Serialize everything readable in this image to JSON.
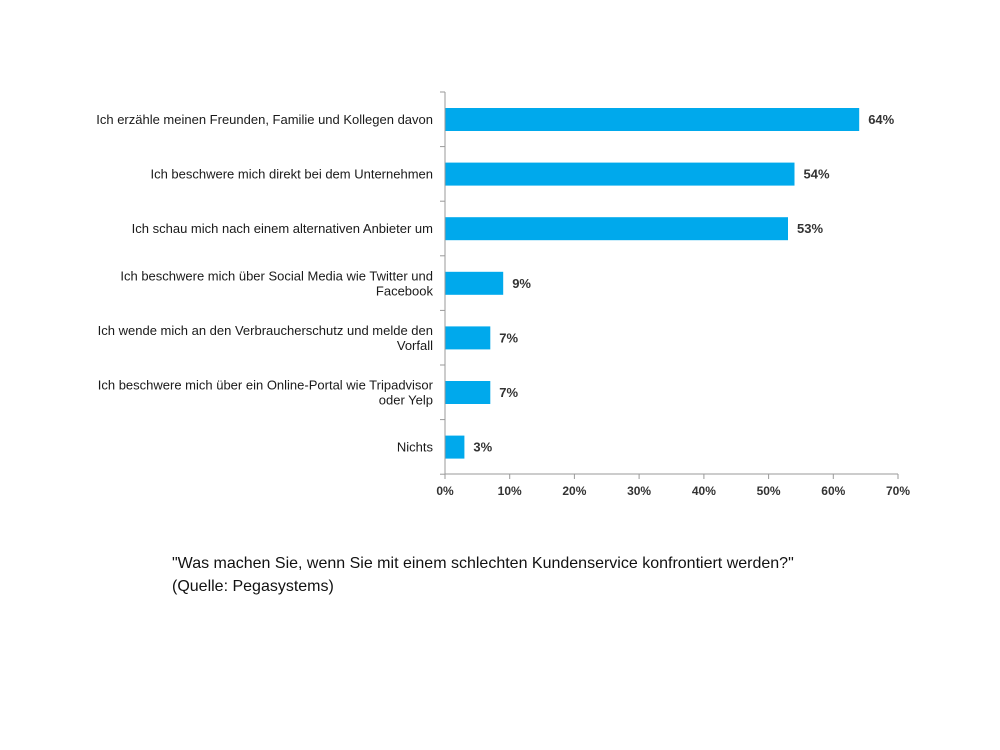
{
  "chart_data": {
    "type": "bar",
    "orientation": "horizontal",
    "categories": [
      [
        "Ich erzähle meinen Freunden, Familie und Kollegen davon"
      ],
      [
        "Ich beschwere mich direkt bei dem Unternehmen"
      ],
      [
        "Ich schau mich nach einem alternativen Anbieter um"
      ],
      [
        "Ich beschwere mich über Social Media wie Twitter und",
        "Facebook"
      ],
      [
        "Ich wende mich an den Verbraucherschutz und melde den",
        "Vorfall"
      ],
      [
        "Ich beschwere mich über ein Online-Portal wie Tripadvisor",
        "oder Yelp"
      ],
      [
        "Nichts"
      ]
    ],
    "values": [
      64,
      54,
      53,
      9,
      7,
      7,
      3
    ],
    "value_labels": [
      "64%",
      "54%",
      "53%",
      "9%",
      "7%",
      "7%",
      "3%"
    ],
    "xlim": [
      0,
      70
    ],
    "xticks": [
      0,
      10,
      20,
      30,
      40,
      50,
      60,
      70
    ],
    "xtick_labels": [
      "0%",
      "10%",
      "20%",
      "30%",
      "40%",
      "50%",
      "60%",
      "70%"
    ],
    "grid": false,
    "bar_color": "#00a9ec",
    "axis_color": "#9a9a9a"
  },
  "caption": {
    "question": "\"Was machen Sie, wenn Sie mit einem schlechten Kundenservice konfrontiert werden?\"",
    "source": "(Quelle: Pegasystems)"
  }
}
